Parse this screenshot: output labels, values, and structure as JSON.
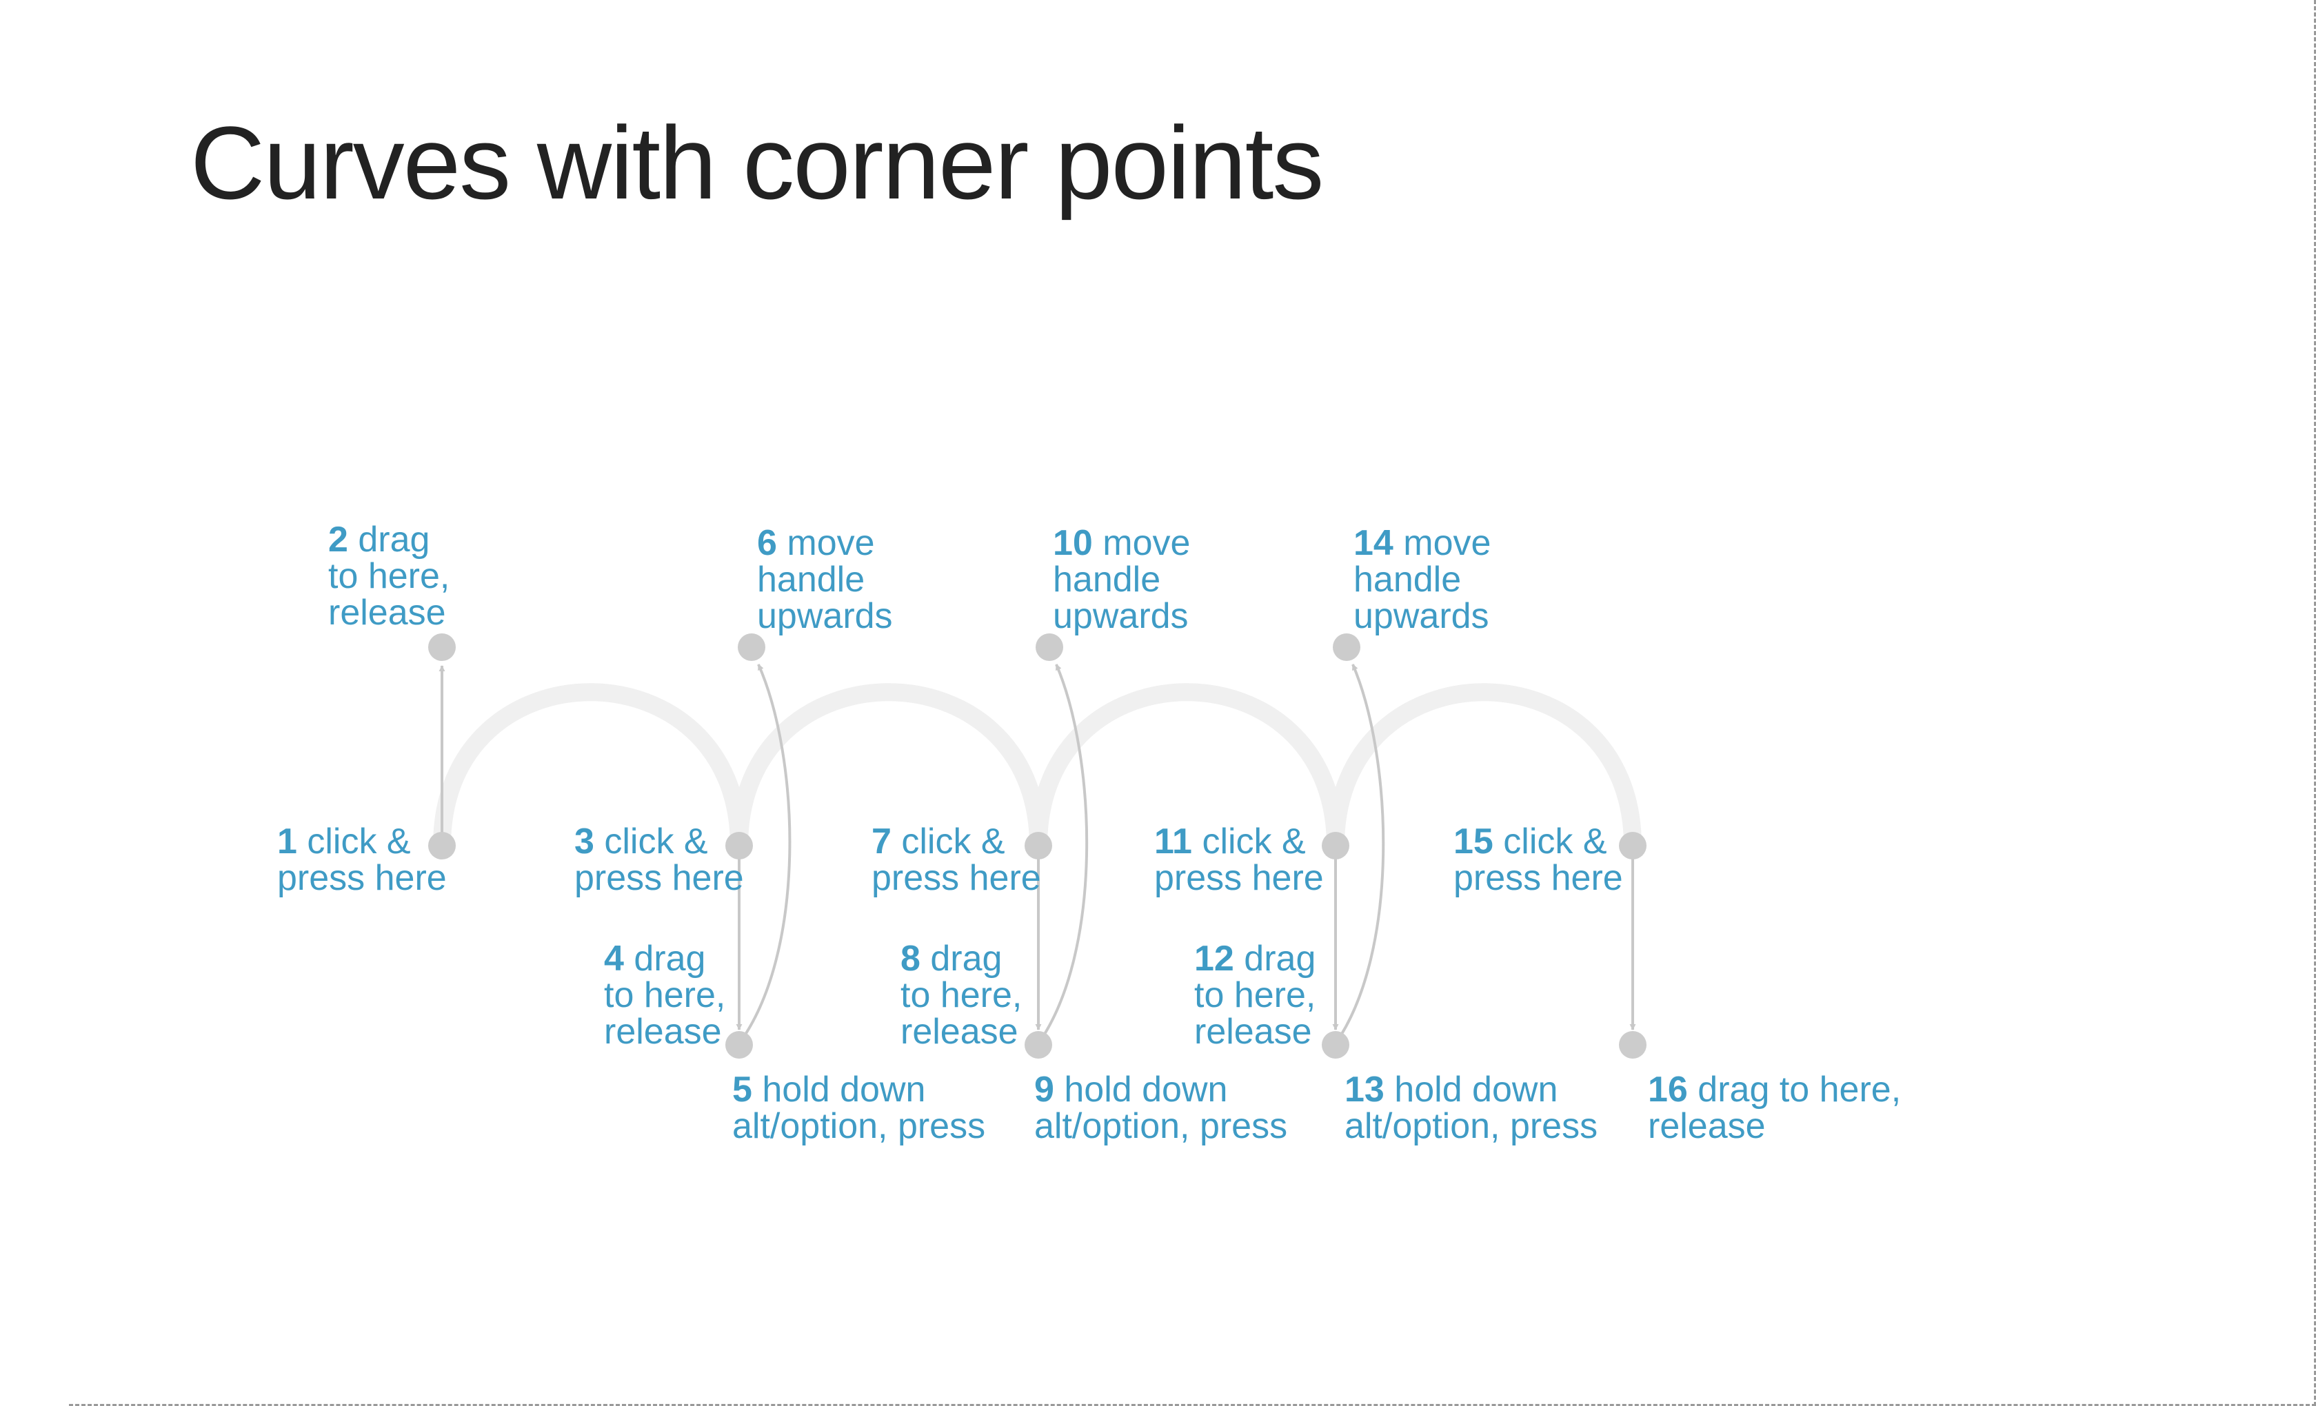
{
  "title": "Curves with corner points",
  "colors": {
    "accent": "#3f9bc5",
    "point": "#cccccc",
    "arrow": "#c8c8c8",
    "curve": "#f0f0f0",
    "title": "#222222"
  },
  "steps": [
    {
      "num": "1",
      "lines": [
        "click &",
        "press here"
      ]
    },
    {
      "num": "2",
      "lines": [
        "drag",
        "to here,",
        "release"
      ]
    },
    {
      "num": "3",
      "lines": [
        "click &",
        "press here"
      ]
    },
    {
      "num": "4",
      "lines": [
        "drag",
        "to here,",
        "release"
      ]
    },
    {
      "num": "5",
      "lines": [
        "hold down",
        "alt/option, press"
      ]
    },
    {
      "num": "6",
      "lines": [
        "move",
        "handle",
        "upwards"
      ]
    },
    {
      "num": "7",
      "lines": [
        "click &",
        "press here"
      ]
    },
    {
      "num": "8",
      "lines": [
        "drag",
        "to here,",
        "release"
      ]
    },
    {
      "num": "9",
      "lines": [
        "hold down",
        "alt/option, press"
      ]
    },
    {
      "num": "10",
      "lines": [
        "move",
        "handle",
        "upwards"
      ]
    },
    {
      "num": "11",
      "lines": [
        "click &",
        "press here"
      ]
    },
    {
      "num": "12",
      "lines": [
        "drag",
        "to here,",
        "release"
      ]
    },
    {
      "num": "13",
      "lines": [
        "hold down",
        "alt/option, press"
      ]
    },
    {
      "num": "14",
      "lines": [
        "move",
        "handle",
        "upwards"
      ]
    },
    {
      "num": "15",
      "lines": [
        "click &",
        "press here"
      ]
    },
    {
      "num": "16",
      "lines": [
        "drag to here,",
        "release"
      ]
    }
  ]
}
